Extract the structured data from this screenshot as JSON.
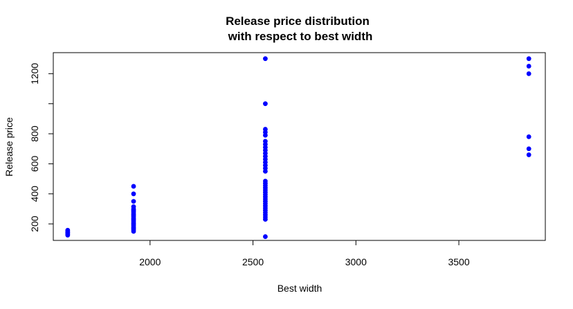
{
  "chart_data": {
    "type": "scatter",
    "title_line1": "Release price distribution",
    "title_line2": "with respect to best width",
    "xlabel": "Best width",
    "ylabel": "Release price",
    "xlim": [
      1530,
      3920
    ],
    "ylim": [
      90,
      1340
    ],
    "x_ticks": [
      2000,
      2500,
      3000,
      3500
    ],
    "y_ticks": [
      200,
      400,
      600,
      800,
      1000,
      1200
    ],
    "y_tick_labels": [
      "200",
      "400",
      "600",
      "800",
      "",
      "1200"
    ],
    "point_color": "#0000ff",
    "grid": false,
    "legend": "none",
    "points": [
      {
        "x": 1600,
        "y": 125
      },
      {
        "x": 1600,
        "y": 130
      },
      {
        "x": 1600,
        "y": 138
      },
      {
        "x": 1600,
        "y": 145
      },
      {
        "x": 1600,
        "y": 150
      },
      {
        "x": 1600,
        "y": 158
      },
      {
        "x": 1920,
        "y": 150
      },
      {
        "x": 1920,
        "y": 160
      },
      {
        "x": 1920,
        "y": 170
      },
      {
        "x": 1920,
        "y": 180
      },
      {
        "x": 1920,
        "y": 190
      },
      {
        "x": 1920,
        "y": 200
      },
      {
        "x": 1920,
        "y": 210
      },
      {
        "x": 1920,
        "y": 220
      },
      {
        "x": 1920,
        "y": 230
      },
      {
        "x": 1920,
        "y": 240
      },
      {
        "x": 1920,
        "y": 250
      },
      {
        "x": 1920,
        "y": 260
      },
      {
        "x": 1920,
        "y": 270
      },
      {
        "x": 1920,
        "y": 280
      },
      {
        "x": 1920,
        "y": 290
      },
      {
        "x": 1920,
        "y": 300
      },
      {
        "x": 1920,
        "y": 315
      },
      {
        "x": 1920,
        "y": 350
      },
      {
        "x": 1920,
        "y": 400
      },
      {
        "x": 1920,
        "y": 450
      },
      {
        "x": 2560,
        "y": 115
      },
      {
        "x": 2560,
        "y": 230
      },
      {
        "x": 2560,
        "y": 245
      },
      {
        "x": 2560,
        "y": 260
      },
      {
        "x": 2560,
        "y": 275
      },
      {
        "x": 2560,
        "y": 290
      },
      {
        "x": 2560,
        "y": 305
      },
      {
        "x": 2560,
        "y": 320
      },
      {
        "x": 2560,
        "y": 335
      },
      {
        "x": 2560,
        "y": 350
      },
      {
        "x": 2560,
        "y": 365
      },
      {
        "x": 2560,
        "y": 380
      },
      {
        "x": 2560,
        "y": 395
      },
      {
        "x": 2560,
        "y": 410
      },
      {
        "x": 2560,
        "y": 425
      },
      {
        "x": 2560,
        "y": 440
      },
      {
        "x": 2560,
        "y": 455
      },
      {
        "x": 2560,
        "y": 470
      },
      {
        "x": 2560,
        "y": 485
      },
      {
        "x": 2560,
        "y": 550
      },
      {
        "x": 2560,
        "y": 570
      },
      {
        "x": 2560,
        "y": 590
      },
      {
        "x": 2560,
        "y": 610
      },
      {
        "x": 2560,
        "y": 630
      },
      {
        "x": 2560,
        "y": 650
      },
      {
        "x": 2560,
        "y": 670
      },
      {
        "x": 2560,
        "y": 690
      },
      {
        "x": 2560,
        "y": 710
      },
      {
        "x": 2560,
        "y": 730
      },
      {
        "x": 2560,
        "y": 750
      },
      {
        "x": 2560,
        "y": 790
      },
      {
        "x": 2560,
        "y": 810
      },
      {
        "x": 2560,
        "y": 830
      },
      {
        "x": 2560,
        "y": 1000
      },
      {
        "x": 2560,
        "y": 1300
      },
      {
        "x": 3840,
        "y": 660
      },
      {
        "x": 3840,
        "y": 700
      },
      {
        "x": 3840,
        "y": 780
      },
      {
        "x": 3840,
        "y": 1200
      },
      {
        "x": 3840,
        "y": 1250
      },
      {
        "x": 3840,
        "y": 1300
      }
    ]
  }
}
